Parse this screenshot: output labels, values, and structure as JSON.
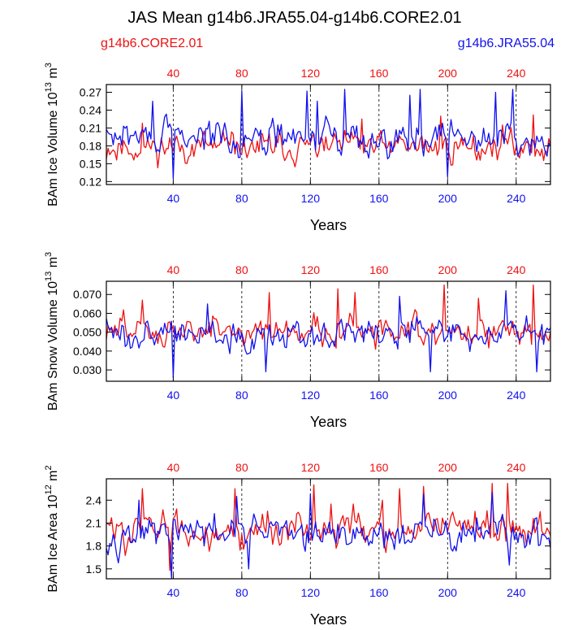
{
  "figure": {
    "title": "JAS Mean g14b6.JRA55.04-g14b6.CORE2.01",
    "legend_left": "g14b6.CORE2.01",
    "legend_right": "g14b6.JRA55.04",
    "colors": {
      "core": "#ee1111",
      "jra": "#1111ee",
      "axis": "#000000"
    }
  },
  "chart_data": [
    {
      "type": "line",
      "ylabel": "BAm Ice Volume 10",
      "ylabel_exp": "13",
      "ylabel_unit": " m",
      "ylabel_unit_exp": "3",
      "xlabel": "Years",
      "xlim": [
        1,
        260
      ],
      "ylim": [
        0.115,
        0.283
      ],
      "yticks": [
        "0.12",
        "0.15",
        "0.18",
        "0.21",
        "0.24",
        "0.27"
      ],
      "xticks": [
        "40",
        "80",
        "120",
        "160",
        "200",
        "240"
      ],
      "series": [
        {
          "name": "g14b6.CORE2.01",
          "mean": 0.178,
          "amp": 0.022,
          "seed": 11,
          "peaks": [
            [
              22,
              0.218
            ],
            [
              58,
              0.205
            ],
            [
              150,
              0.225
            ],
            [
              196,
              0.23
            ],
            [
              232,
              0.215
            ],
            [
              250,
              0.232
            ]
          ]
        },
        {
          "name": "g14b6.JRA55.04",
          "mean": 0.195,
          "amp": 0.025,
          "seed": 29,
          "peaks": [
            [
              28,
              0.255
            ],
            [
              40,
              0.125
            ],
            [
              80,
              0.272
            ],
            [
              118,
              0.272
            ],
            [
              124,
              0.255
            ],
            [
              140,
              0.275
            ],
            [
              178,
              0.265
            ],
            [
              184,
              0.275
            ],
            [
              200,
              0.128
            ],
            [
              228,
              0.27
            ],
            [
              238,
              0.275
            ]
          ]
        }
      ]
    },
    {
      "type": "line",
      "ylabel": "BAm Snow Volume 10",
      "ylabel_exp": "13",
      "ylabel_unit": " m",
      "ylabel_unit_exp": "3",
      "xlabel": "Years",
      "xlim": [
        1,
        260
      ],
      "ylim": [
        0.024,
        0.077
      ],
      "yticks": [
        "0.030",
        "0.040",
        "0.050",
        "0.060",
        "0.070"
      ],
      "xticks": [
        "40",
        "80",
        "120",
        "160",
        "200",
        "240"
      ],
      "series": [
        {
          "name": "g14b6.CORE2.01",
          "mean": 0.051,
          "amp": 0.007,
          "seed": 47,
          "peaks": [
            [
              22,
              0.067
            ],
            [
              96,
              0.071
            ],
            [
              136,
              0.073
            ],
            [
              146,
              0.071
            ],
            [
              198,
              0.075
            ],
            [
              218,
              0.068
            ],
            [
              250,
              0.075
            ]
          ]
        },
        {
          "name": "g14b6.JRA55.04",
          "mean": 0.05,
          "amp": 0.007,
          "seed": 63,
          "peaks": [
            [
              40,
              0.026
            ],
            [
              60,
              0.065
            ],
            [
              94,
              0.029
            ],
            [
              172,
              0.069
            ],
            [
              190,
              0.029
            ],
            [
              234,
              0.072
            ],
            [
              252,
              0.029
            ]
          ]
        }
      ]
    },
    {
      "type": "line",
      "ylabel": "BAm Ice Area 10",
      "ylabel_exp": "12",
      "ylabel_unit": " m",
      "ylabel_unit_exp": "2",
      "xlabel": "Years",
      "xlim": [
        1,
        260
      ],
      "ylim": [
        1.37,
        2.68
      ],
      "yticks": [
        "1.5",
        "1.8",
        "2.1",
        "2.4"
      ],
      "xticks": [
        "40",
        "80",
        "120",
        "160",
        "200",
        "240"
      ],
      "series": [
        {
          "name": "g14b6.CORE2.01",
          "mean": 2.02,
          "amp": 0.2,
          "seed": 83,
          "peaks": [
            [
              22,
              2.55
            ],
            [
              38,
              1.48
            ],
            [
              76,
              2.55
            ],
            [
              122,
              2.6
            ],
            [
              132,
              2.35
            ],
            [
              162,
              2.4
            ],
            [
              172,
              2.55
            ],
            [
              186,
              2.58
            ],
            [
              226,
              2.62
            ],
            [
              235,
              2.62
            ]
          ]
        },
        {
          "name": "g14b6.JRA55.04",
          "mean": 1.96,
          "amp": 0.19,
          "seed": 97,
          "peaks": [
            [
              20,
              2.4
            ],
            [
              39,
              1.38
            ],
            [
              77,
              2.45
            ],
            [
              84,
              1.5
            ],
            [
              120,
              2.48
            ],
            [
              186,
              2.48
            ],
            [
              226,
              2.5
            ],
            [
              236,
              1.55
            ]
          ]
        }
      ]
    }
  ]
}
